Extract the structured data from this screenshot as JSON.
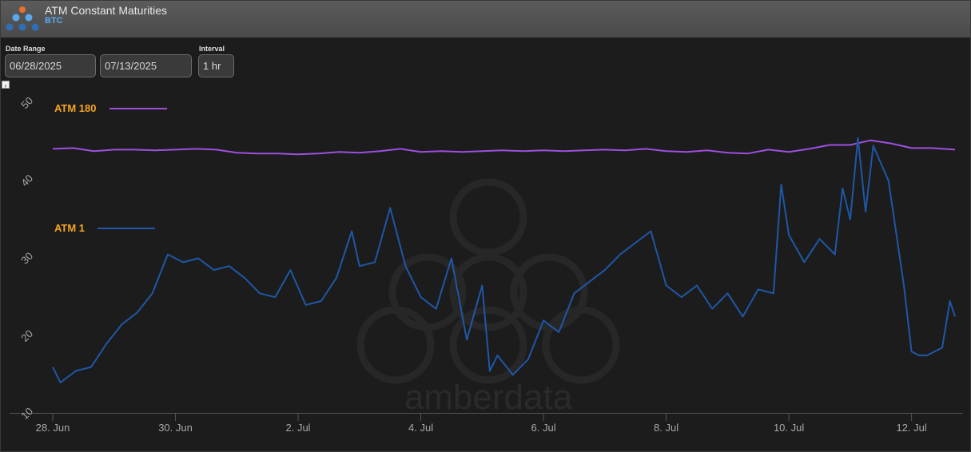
{
  "header": {
    "title": "ATM Constant Maturities",
    "subtitle": "BTC"
  },
  "controls": {
    "date_range_label": "Date Range",
    "start_date": "06/28/2025",
    "end_date": "07/13/2025",
    "interval_label": "Interval",
    "interval_value": "1 hr"
  },
  "watermark": {
    "text": "amberdata"
  },
  "colors": {
    "atm180": "#9e4fe0",
    "atm1": "#1f57a6",
    "legend_text": "#f5a623",
    "background": "#1c1c1c"
  },
  "chart_data": {
    "type": "line",
    "title": "ATM Constant Maturities",
    "subtitle": "BTC",
    "ylim": [
      10,
      50
    ],
    "xlim": [
      "2025-06-28",
      "2025-07-12T17:00"
    ],
    "yticks": [
      "10",
      "20",
      "30",
      "40",
      "50"
    ],
    "xticks": [
      {
        "date": "2025-06-28",
        "label": "28. Jun"
      },
      {
        "date": "2025-06-30",
        "label": "30. Jun"
      },
      {
        "date": "2025-07-02",
        "label": "2. Jul"
      },
      {
        "date": "2025-07-04",
        "label": "4. Jul"
      },
      {
        "date": "2025-07-06",
        "label": "6. Jul"
      },
      {
        "date": "2025-07-08",
        "label": "8. Jul"
      },
      {
        "date": "2025-07-10",
        "label": "10. Jul"
      },
      {
        "date": "2025-07-12",
        "label": "12. Jul"
      }
    ],
    "grid": false,
    "legend": "inline-left",
    "series": [
      {
        "name": "ATM 180",
        "x": [
          "2025-06-28T00:00",
          "2025-06-28T08:00",
          "2025-06-28T16:00",
          "2025-06-29T00:00",
          "2025-06-29T08:00",
          "2025-06-29T16:00",
          "2025-06-30T00:00",
          "2025-06-30T08:00",
          "2025-06-30T16:00",
          "2025-07-01T00:00",
          "2025-07-01T08:00",
          "2025-07-01T16:00",
          "2025-07-02T00:00",
          "2025-07-02T08:00",
          "2025-07-02T16:00",
          "2025-07-03T00:00",
          "2025-07-03T08:00",
          "2025-07-03T16:00",
          "2025-07-04T00:00",
          "2025-07-04T08:00",
          "2025-07-04T16:00",
          "2025-07-05T00:00",
          "2025-07-05T08:00",
          "2025-07-05T16:00",
          "2025-07-06T00:00",
          "2025-07-06T08:00",
          "2025-07-06T16:00",
          "2025-07-07T00:00",
          "2025-07-07T08:00",
          "2025-07-07T16:00",
          "2025-07-08T00:00",
          "2025-07-08T08:00",
          "2025-07-08T16:00",
          "2025-07-09T00:00",
          "2025-07-09T08:00",
          "2025-07-09T16:00",
          "2025-07-10T00:00",
          "2025-07-10T08:00",
          "2025-07-10T16:00",
          "2025-07-11T00:00",
          "2025-07-11T08:00",
          "2025-07-11T16:00",
          "2025-07-12T00:00",
          "2025-07-12T08:00",
          "2025-07-12T17:00"
        ],
        "y": [
          44.1,
          44.2,
          43.8,
          44.0,
          44.0,
          43.9,
          44.0,
          44.1,
          44.0,
          43.6,
          43.5,
          43.5,
          43.4,
          43.5,
          43.7,
          43.6,
          43.8,
          44.1,
          43.7,
          43.8,
          43.7,
          43.8,
          43.9,
          43.8,
          43.9,
          43.8,
          43.9,
          44.0,
          43.9,
          44.1,
          43.8,
          43.7,
          43.9,
          43.6,
          43.5,
          44.0,
          43.7,
          44.1,
          44.6,
          44.6,
          45.2,
          44.8,
          44.2,
          44.2,
          44.0
        ]
      },
      {
        "name": "ATM 1",
        "x": [
          "2025-06-28T00:00",
          "2025-06-28T03:00",
          "2025-06-28T09:00",
          "2025-06-28T15:00",
          "2025-06-28T21:00",
          "2025-06-29T03:00",
          "2025-06-29T09:00",
          "2025-06-29T15:00",
          "2025-06-29T21:00",
          "2025-06-30T03:00",
          "2025-06-30T09:00",
          "2025-06-30T15:00",
          "2025-06-30T21:00",
          "2025-07-01T03:00",
          "2025-07-01T09:00",
          "2025-07-01T15:00",
          "2025-07-01T21:00",
          "2025-07-02T03:00",
          "2025-07-02T09:00",
          "2025-07-02T15:00",
          "2025-07-02T21:00",
          "2025-07-03T00:00",
          "2025-07-03T06:00",
          "2025-07-03T12:00",
          "2025-07-03T18:00",
          "2025-07-04T00:00",
          "2025-07-04T06:00",
          "2025-07-04T12:00",
          "2025-07-04T18:00",
          "2025-07-05T00:00",
          "2025-07-05T03:00",
          "2025-07-05T06:00",
          "2025-07-05T12:00",
          "2025-07-05T18:00",
          "2025-07-06T00:00",
          "2025-07-06T06:00",
          "2025-07-06T12:00",
          "2025-07-06T18:00",
          "2025-07-07T00:00",
          "2025-07-07T06:00",
          "2025-07-07T12:00",
          "2025-07-07T18:00",
          "2025-07-08T00:00",
          "2025-07-08T06:00",
          "2025-07-08T12:00",
          "2025-07-08T18:00",
          "2025-07-09T00:00",
          "2025-07-09T06:00",
          "2025-07-09T12:00",
          "2025-07-09T18:00",
          "2025-07-09T21:00",
          "2025-07-10T00:00",
          "2025-07-10T06:00",
          "2025-07-10T12:00",
          "2025-07-10T18:00",
          "2025-07-10T21:00",
          "2025-07-11T00:00",
          "2025-07-11T03:00",
          "2025-07-11T06:00",
          "2025-07-11T09:00",
          "2025-07-11T15:00",
          "2025-07-11T21:00",
          "2025-07-12T00:00",
          "2025-07-12T03:00",
          "2025-07-12T06:00",
          "2025-07-12T12:00",
          "2025-07-12T15:00",
          "2025-07-12T17:00"
        ],
        "y": [
          16.0,
          14.0,
          15.5,
          16.0,
          19.0,
          21.5,
          23.0,
          25.5,
          30.5,
          29.5,
          30.0,
          28.5,
          29.0,
          27.5,
          25.5,
          25.0,
          28.5,
          24.0,
          24.5,
          27.5,
          33.5,
          29.0,
          29.5,
          36.5,
          29.0,
          25.0,
          23.5,
          30.0,
          19.5,
          26.5,
          15.5,
          17.5,
          15.0,
          17.0,
          22.0,
          20.5,
          25.5,
          27.0,
          28.5,
          30.5,
          32.0,
          33.5,
          26.5,
          25.0,
          26.5,
          23.5,
          25.5,
          22.5,
          26.0,
          25.5,
          39.5,
          33.0,
          29.5,
          32.5,
          30.5,
          39.0,
          35.0,
          45.5,
          36.0,
          44.5,
          40.0,
          26.5,
          18.0,
          17.5,
          17.5,
          18.5,
          24.5,
          22.5
        ]
      }
    ]
  }
}
